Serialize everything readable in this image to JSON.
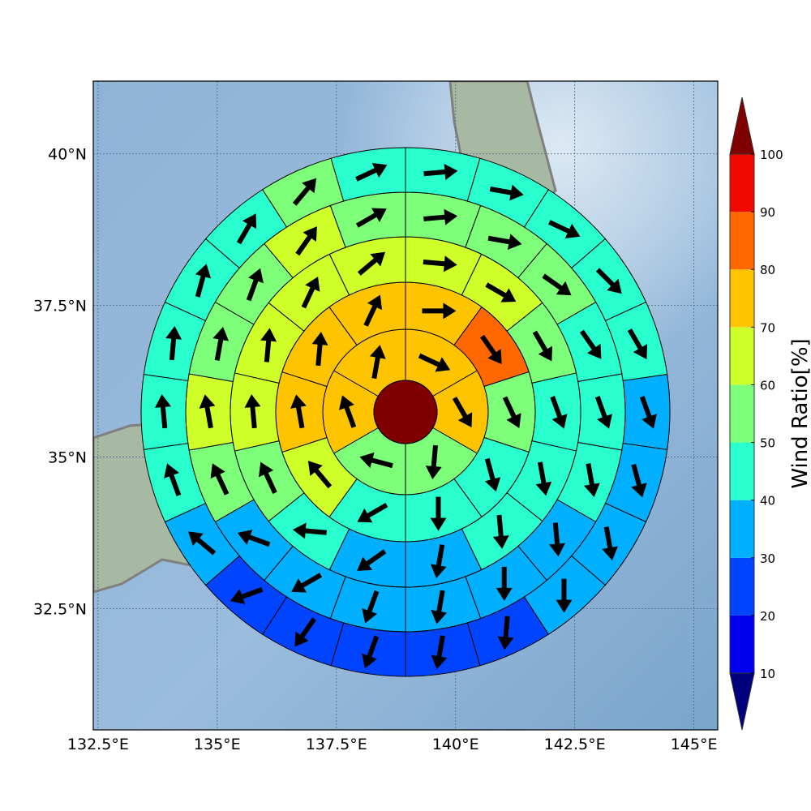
{
  "chart_data": {
    "type": "heatmap",
    "subtype": "polar-sector-map-with-wind-vectors",
    "map": {
      "lon_range": [
        132.4,
        145.5
      ],
      "lat_range": [
        30.5,
        41.2
      ],
      "x_ticks": [
        "132.5°E",
        "135°E",
        "137.5°E",
        "140°E",
        "142.5°E",
        "145°E"
      ],
      "x_tick_values": [
        132.5,
        135,
        137.5,
        140,
        142.5,
        145
      ],
      "y_ticks": [
        "40°N",
        "37.5°N",
        "35°N",
        "32.5°N"
      ],
      "y_tick_values": [
        40,
        37.5,
        35,
        32.5
      ],
      "grid": true
    },
    "center": {
      "value": 105,
      "color": "#800000"
    },
    "rings": [
      {
        "sectors": 6,
        "values": [
          75,
          75,
          55,
          55,
          75,
          75
        ],
        "arrow_dir_deg": [
          115,
          150,
          185,
          285,
          340,
          10
        ]
      },
      {
        "sectors": 10,
        "values": [
          75,
          85,
          55,
          45,
          45,
          45,
          65,
          75,
          75,
          75
        ],
        "arrow_dir_deg": [
          90,
          145,
          155,
          165,
          180,
          240,
          320,
          350,
          5,
          25
        ]
      },
      {
        "sectors": 14,
        "values": [
          65,
          65,
          55,
          45,
          45,
          45,
          35,
          35,
          45,
          55,
          65,
          65,
          65,
          65
        ],
        "arrow_dir_deg": [
          95,
          120,
          150,
          160,
          170,
          175,
          190,
          235,
          275,
          335,
          355,
          5,
          25,
          50
        ]
      },
      {
        "sectors": 18,
        "values": [
          55,
          55,
          55,
          45,
          45,
          45,
          35,
          35,
          35,
          35,
          35,
          35,
          55,
          65,
          55,
          55,
          65,
          55
        ],
        "arrow_dir_deg": [
          85,
          100,
          125,
          145,
          160,
          170,
          175,
          180,
          190,
          200,
          240,
          290,
          335,
          350,
          10,
          20,
          35,
          60
        ]
      },
      {
        "sectors": 22,
        "values": [
          45,
          45,
          45,
          45,
          45,
          35,
          35,
          35,
          35,
          25,
          25,
          25,
          25,
          25,
          35,
          45,
          45,
          45,
          45,
          45,
          55,
          45
        ],
        "arrow_dir_deg": [
          85,
          100,
          115,
          135,
          150,
          160,
          165,
          170,
          180,
          185,
          190,
          200,
          215,
          250,
          310,
          340,
          355,
          5,
          15,
          30,
          40,
          65
        ]
      }
    ],
    "colorbar": {
      "label": "Wind Ratio[%]",
      "ticks": [
        "10",
        "20",
        "30",
        "40",
        "50",
        "60",
        "70",
        "80",
        "90",
        "100"
      ],
      "bounds": [
        10,
        20,
        30,
        40,
        50,
        60,
        70,
        80,
        90,
        100
      ],
      "colors": [
        "#0000ee",
        "#0044ff",
        "#00b0ff",
        "#29ffce",
        "#7dff7a",
        "#ceff29",
        "#ffc400",
        "#ff6800",
        "#f10800"
      ],
      "under_color": "#00007f",
      "over_color": "#800000",
      "extend": "both"
    }
  }
}
